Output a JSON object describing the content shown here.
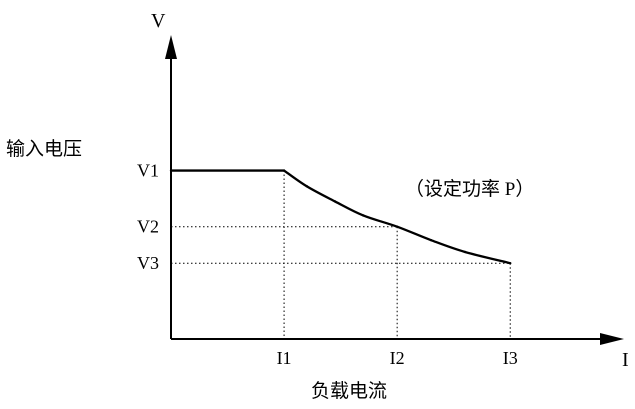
{
  "chart_data": {
    "type": "line",
    "title": "",
    "xlabel": "负载电流",
    "ylabel": "输入电压",
    "x_axis_symbol": "I",
    "y_axis_symbol": "V",
    "x_ticks": [
      {
        "label": "I1",
        "value": 1
      },
      {
        "label": "I2",
        "value": 2
      },
      {
        "label": "I3",
        "value": 3
      }
    ],
    "y_ticks": [
      {
        "label": "V1",
        "value": 3
      },
      {
        "label": "V2",
        "value": 2
      },
      {
        "label": "V3",
        "value": 1.35
      }
    ],
    "series": [
      {
        "x": [
          0,
          1,
          1.2,
          1.45,
          1.7,
          2,
          2.3,
          2.6,
          3
        ],
        "y": [
          3,
          3,
          2.72,
          2.45,
          2.2,
          2,
          1.76,
          1.55,
          1.35
        ]
      }
    ],
    "annotations": [
      {
        "text": "（设定功率 P）"
      }
    ],
    "xlim": [
      0,
      3.9
    ],
    "ylim": [
      0,
      5.2
    ],
    "grid": false,
    "dotted_guides": true,
    "colors": {
      "line": "#000000",
      "axis": "#000000",
      "guide": "#000000"
    }
  }
}
